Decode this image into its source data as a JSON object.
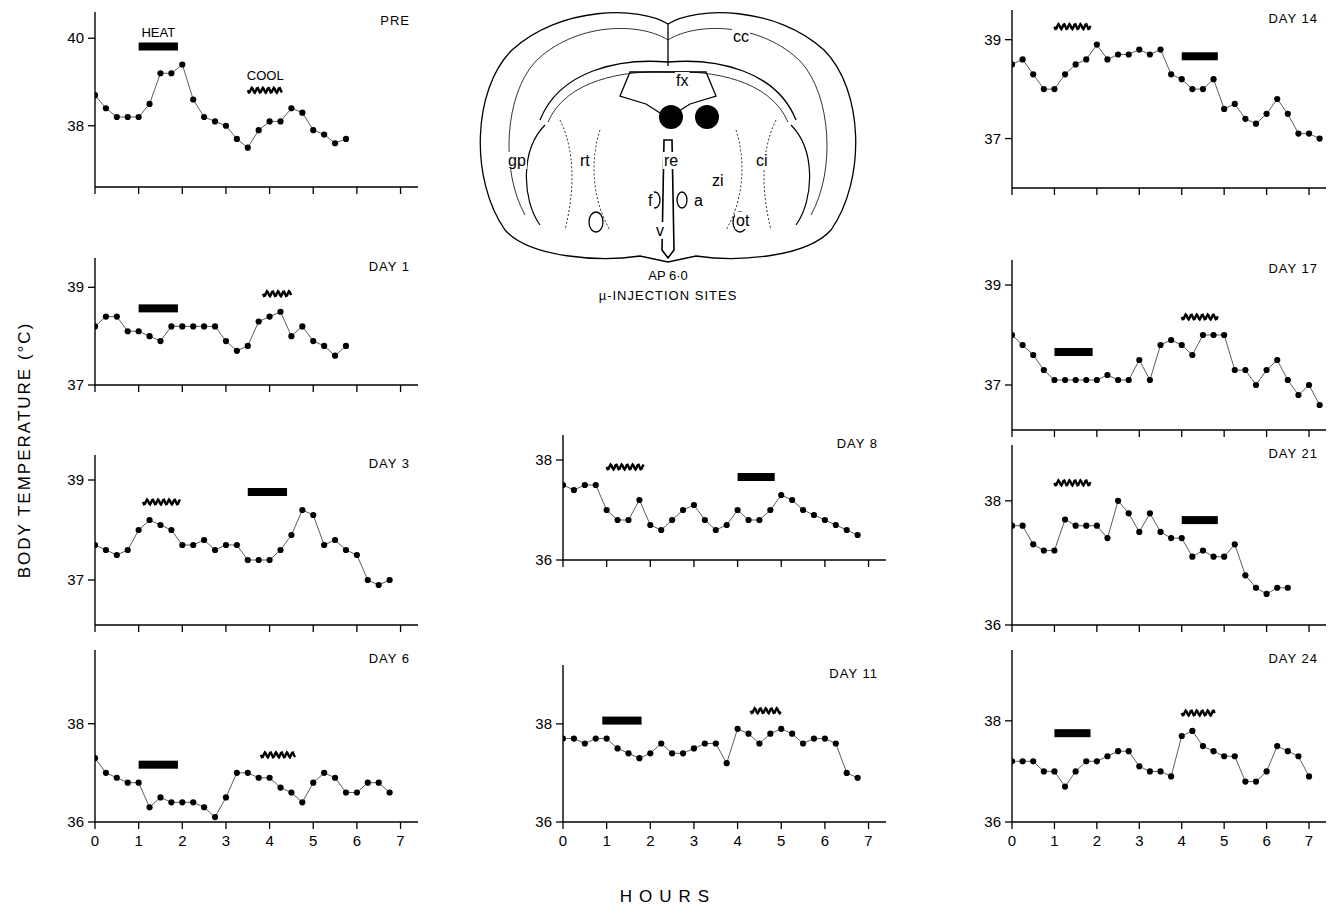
{
  "chart_data": [
    {
      "type": "line",
      "title": "PRE",
      "color": "#000000",
      "marker": "circle",
      "line_style": "solid",
      "grid": false,
      "tick_labels": "y",
      "x": [
        0,
        0.25,
        0.5,
        0.75,
        1,
        1.25,
        1.5,
        1.75,
        2,
        2.25,
        2.5,
        2.75,
        3,
        3.25,
        3.5,
        3.75,
        4,
        4.25,
        4.5,
        4.75,
        5,
        5.25,
        5.5,
        5.75
      ],
      "values": [
        38.7,
        38.4,
        38.2,
        38.2,
        38.2,
        38.5,
        39.2,
        39.2,
        39.4,
        38.6,
        38.2,
        38.1,
        38.0,
        37.7,
        37.5,
        37.9,
        38.1,
        38.1,
        38.4,
        38.3,
        37.9,
        37.8,
        37.6,
        37.7
      ],
      "xlim": [
        0,
        7.4
      ],
      "xticks": [
        0,
        1,
        2,
        3,
        4,
        5,
        6,
        7
      ],
      "ylim": [
        36.6,
        40.6
      ],
      "yticks": [
        38,
        40
      ],
      "heat": [
        1.0,
        1.9
      ],
      "cool": [
        3.5,
        4.3
      ],
      "heat_label": "HEAT",
      "cool_label": "COOL"
    },
    {
      "type": "line",
      "title": "DAY 1",
      "color": "#000000",
      "marker": "circle",
      "line_style": "solid",
      "grid": false,
      "tick_labels": "y",
      "x": [
        0,
        0.25,
        0.5,
        0.75,
        1,
        1.25,
        1.5,
        1.75,
        2,
        2.25,
        2.5,
        2.75,
        3,
        3.25,
        3.5,
        3.75,
        4,
        4.25,
        4.5,
        4.75,
        5,
        5.25,
        5.5,
        5.75
      ],
      "values": [
        38.2,
        38.4,
        38.4,
        38.1,
        38.1,
        38.0,
        37.9,
        38.2,
        38.2,
        38.2,
        38.2,
        38.2,
        37.9,
        37.7,
        37.8,
        38.3,
        38.4,
        38.5,
        38.0,
        38.2,
        37.9,
        37.8,
        37.6,
        37.8
      ],
      "xlim": [
        0,
        7.4
      ],
      "xticks": [
        0,
        1,
        2,
        3,
        4,
        5,
        6,
        7
      ],
      "ylim": [
        37,
        39.6
      ],
      "yticks": [
        37,
        39
      ],
      "heat": [
        1.0,
        1.9
      ],
      "cool": [
        3.85,
        4.5
      ]
    },
    {
      "type": "line",
      "title": "DAY 3",
      "color": "#000000",
      "marker": "circle",
      "line_style": "solid",
      "grid": false,
      "tick_labels": "y",
      "x": [
        0,
        0.25,
        0.5,
        0.75,
        1,
        1.25,
        1.5,
        1.75,
        2,
        2.25,
        2.5,
        2.75,
        3,
        3.25,
        3.5,
        3.75,
        4,
        4.25,
        4.5,
        4.75,
        5,
        5.25,
        5.5,
        5.75,
        6,
        6.25,
        6.5,
        6.75
      ],
      "values": [
        37.7,
        37.6,
        37.5,
        37.6,
        38.0,
        38.2,
        38.1,
        38.0,
        37.7,
        37.7,
        37.8,
        37.6,
        37.7,
        37.7,
        37.4,
        37.4,
        37.4,
        37.6,
        37.9,
        38.4,
        38.3,
        37.7,
        37.8,
        37.6,
        37.5,
        37.0,
        36.9,
        37.0
      ],
      "xlim": [
        0,
        7.4
      ],
      "xticks": [
        0,
        1,
        2,
        3,
        4,
        5,
        6,
        7
      ],
      "ylim": [
        36.1,
        39.5
      ],
      "yticks": [
        37,
        39
      ],
      "cool": [
        1.1,
        1.95
      ],
      "heat": [
        3.5,
        4.4
      ]
    },
    {
      "type": "line",
      "title": "DAY 6",
      "color": "#000000",
      "marker": "circle",
      "line_style": "solid",
      "grid": false,
      "tick_labels": true,
      "x": [
        0,
        0.25,
        0.5,
        0.75,
        1,
        1.25,
        1.5,
        1.75,
        2,
        2.25,
        2.5,
        2.75,
        3,
        3.25,
        3.5,
        3.75,
        4,
        4.25,
        4.5,
        4.75,
        5,
        5.25,
        5.5,
        5.75,
        6,
        6.25,
        6.5,
        6.75
      ],
      "values": [
        37.3,
        37.0,
        36.9,
        36.8,
        36.8,
        36.3,
        36.5,
        36.4,
        36.4,
        36.4,
        36.3,
        36.1,
        36.5,
        37.0,
        37.0,
        36.9,
        36.9,
        36.7,
        36.6,
        36.4,
        36.8,
        37.0,
        36.9,
        36.6,
        36.6,
        36.8,
        36.8,
        36.6
      ],
      "xlim": [
        0,
        7.4
      ],
      "xticks": [
        0,
        1,
        2,
        3,
        4,
        5,
        6,
        7
      ],
      "ylim": [
        36,
        39.5
      ],
      "yticks": [
        36,
        38
      ],
      "heat": [
        1.0,
        1.9
      ],
      "cool": [
        3.8,
        4.6
      ]
    },
    {
      "type": "line",
      "title": "DAY 8",
      "color": "#000000",
      "marker": "circle",
      "line_style": "solid",
      "grid": false,
      "tick_labels": "y",
      "x": [
        0,
        0.25,
        0.5,
        0.75,
        1,
        1.25,
        1.5,
        1.75,
        2,
        2.25,
        2.5,
        2.75,
        3,
        3.25,
        3.5,
        3.75,
        4,
        4.25,
        4.5,
        4.75,
        5,
        5.25,
        5.5,
        5.75,
        6,
        6.25,
        6.5,
        6.75
      ],
      "values": [
        37.5,
        37.4,
        37.5,
        37.5,
        37.0,
        36.8,
        36.8,
        37.2,
        36.7,
        36.6,
        36.8,
        37.0,
        37.1,
        36.8,
        36.6,
        36.7,
        37.0,
        36.8,
        36.8,
        37.0,
        37.3,
        37.2,
        37.0,
        36.9,
        36.8,
        36.7,
        36.6,
        36.5
      ],
      "xlim": [
        0,
        7.4
      ],
      "xticks": [
        0,
        1,
        2,
        3,
        4,
        5,
        6,
        7
      ],
      "ylim": [
        36,
        38.5
      ],
      "yticks": [
        36,
        38
      ],
      "cool": [
        1.0,
        1.85
      ],
      "heat": [
        4.0,
        4.85
      ]
    },
    {
      "type": "line",
      "title": "DAY 11",
      "color": "#000000",
      "marker": "circle",
      "line_style": "solid",
      "grid": false,
      "tick_labels": true,
      "x": [
        0,
        0.25,
        0.5,
        0.75,
        1,
        1.25,
        1.5,
        1.75,
        2,
        2.25,
        2.5,
        2.75,
        3,
        3.25,
        3.5,
        3.75,
        4,
        4.25,
        4.5,
        4.75,
        5,
        5.25,
        5.5,
        5.75,
        6,
        6.25,
        6.5,
        6.75
      ],
      "values": [
        37.7,
        37.7,
        37.6,
        37.7,
        37.7,
        37.5,
        37.4,
        37.3,
        37.4,
        37.6,
        37.4,
        37.4,
        37.5,
        37.6,
        37.6,
        37.2,
        37.9,
        37.8,
        37.6,
        37.8,
        37.9,
        37.8,
        37.6,
        37.7,
        37.7,
        37.6,
        37.0,
        36.9
      ],
      "xlim": [
        0,
        7.4
      ],
      "xticks": [
        0,
        1,
        2,
        3,
        4,
        5,
        6,
        7
      ],
      "ylim": [
        36,
        39.2
      ],
      "yticks": [
        36,
        38
      ],
      "heat": [
        0.9,
        1.8
      ],
      "cool": [
        4.3,
        5.0
      ]
    },
    {
      "type": "line",
      "title": "DAY 14",
      "color": "#000000",
      "marker": "circle",
      "line_style": "solid",
      "grid": false,
      "tick_labels": "y",
      "x": [
        0,
        0.25,
        0.5,
        0.75,
        1,
        1.25,
        1.5,
        1.75,
        2,
        2.25,
        2.5,
        2.75,
        3,
        3.25,
        3.5,
        3.75,
        4,
        4.25,
        4.5,
        4.75,
        5,
        5.25,
        5.5,
        5.75,
        6,
        6.25,
        6.5,
        6.75,
        7,
        7.25
      ],
      "values": [
        38.5,
        38.6,
        38.3,
        38.0,
        38.0,
        38.3,
        38.5,
        38.6,
        38.9,
        38.6,
        38.7,
        38.7,
        38.8,
        38.7,
        38.8,
        38.3,
        38.2,
        38.0,
        38.0,
        38.2,
        37.6,
        37.7,
        37.4,
        37.3,
        37.5,
        37.8,
        37.5,
        37.1,
        37.1,
        37.0
      ],
      "xlim": [
        0,
        7.4
      ],
      "xticks": [
        0,
        1,
        2,
        3,
        4,
        5,
        6,
        7
      ],
      "ylim": [
        36,
        39.6
      ],
      "yticks": [
        37,
        39
      ],
      "cool": [
        1.0,
        1.85
      ],
      "heat": [
        4.0,
        4.85
      ]
    },
    {
      "type": "line",
      "title": "DAY 17",
      "color": "#000000",
      "marker": "circle",
      "line_style": "solid",
      "grid": false,
      "tick_labels": "y",
      "x": [
        0,
        0.25,
        0.5,
        0.75,
        1,
        1.25,
        1.5,
        1.75,
        2,
        2.25,
        2.5,
        2.75,
        3,
        3.25,
        3.5,
        3.75,
        4,
        4.25,
        4.5,
        4.75,
        5,
        5.25,
        5.5,
        5.75,
        6,
        6.25,
        6.5,
        6.75,
        7,
        7.25
      ],
      "values": [
        38.0,
        37.8,
        37.6,
        37.3,
        37.1,
        37.1,
        37.1,
        37.1,
        37.1,
        37.2,
        37.1,
        37.1,
        37.5,
        37.1,
        37.8,
        37.9,
        37.8,
        37.6,
        38.0,
        38.0,
        38.0,
        37.3,
        37.3,
        37.0,
        37.3,
        37.5,
        37.1,
        36.8,
        37.0,
        36.6
      ],
      "xlim": [
        0,
        7.4
      ],
      "xticks": [
        0,
        1,
        2,
        3,
        4,
        5,
        6,
        7
      ],
      "ylim": [
        36.1,
        39.5
      ],
      "yticks": [
        37,
        39
      ],
      "heat": [
        1.0,
        1.9
      ],
      "cool": [
        4.0,
        4.85
      ]
    },
    {
      "type": "line",
      "title": "DAY 21",
      "color": "#000000",
      "marker": "circle",
      "line_style": "solid",
      "grid": false,
      "tick_labels": "y",
      "x": [
        0,
        0.25,
        0.5,
        0.75,
        1,
        1.25,
        1.5,
        1.75,
        2,
        2.25,
        2.5,
        2.75,
        3,
        3.25,
        3.5,
        3.75,
        4,
        4.25,
        4.5,
        4.75,
        5,
        5.25,
        5.5,
        5.75,
        6,
        6.25,
        6.5
      ],
      "values": [
        37.6,
        37.6,
        37.3,
        37.2,
        37.2,
        37.7,
        37.6,
        37.6,
        37.6,
        37.4,
        38.0,
        37.8,
        37.5,
        37.8,
        37.5,
        37.4,
        37.4,
        37.1,
        37.2,
        37.1,
        37.1,
        37.3,
        36.8,
        36.6,
        36.5,
        36.6,
        36.6
      ],
      "xlim": [
        0,
        7.4
      ],
      "xticks": [
        0,
        1,
        2,
        3,
        4,
        5,
        6,
        7
      ],
      "ylim": [
        36,
        38.9
      ],
      "yticks": [
        36,
        38
      ],
      "cool": [
        1.0,
        1.85
      ],
      "heat": [
        4.0,
        4.85
      ]
    },
    {
      "type": "line",
      "title": "DAY 24",
      "color": "#000000",
      "marker": "circle",
      "line_style": "solid",
      "grid": false,
      "tick_labels": true,
      "x": [
        0,
        0.25,
        0.5,
        0.75,
        1,
        1.25,
        1.5,
        1.75,
        2,
        2.25,
        2.5,
        2.75,
        3,
        3.25,
        3.5,
        3.75,
        4,
        4.25,
        4.5,
        4.75,
        5,
        5.25,
        5.5,
        5.75,
        6,
        6.25,
        6.5,
        6.75,
        7
      ],
      "values": [
        37.2,
        37.2,
        37.2,
        37.0,
        37.0,
        36.7,
        37.0,
        37.2,
        37.2,
        37.3,
        37.4,
        37.4,
        37.1,
        37.0,
        37.0,
        36.9,
        37.7,
        37.8,
        37.5,
        37.4,
        37.3,
        37.3,
        36.8,
        36.8,
        37.0,
        37.5,
        37.4,
        37.3,
        36.9
      ],
      "xlim": [
        0,
        7.4
      ],
      "xticks": [
        0,
        1,
        2,
        3,
        4,
        5,
        6,
        7
      ],
      "ylim": [
        36,
        39.4
      ],
      "yticks": [
        36,
        38
      ],
      "heat": [
        1.0,
        1.85
      ],
      "cool": [
        4.0,
        4.8
      ]
    }
  ],
  "figure": {
    "y_label": "BODY TEMPERATURE (°C)",
    "x_label": "HOURS"
  },
  "diagram": {
    "labels": [
      "cc",
      "fx",
      "gp",
      "rt",
      "re",
      "ci",
      "zi",
      "f",
      "a",
      "v",
      "ot"
    ],
    "level": "AP 6·0",
    "caption": "µ-INJECTION SITES"
  }
}
